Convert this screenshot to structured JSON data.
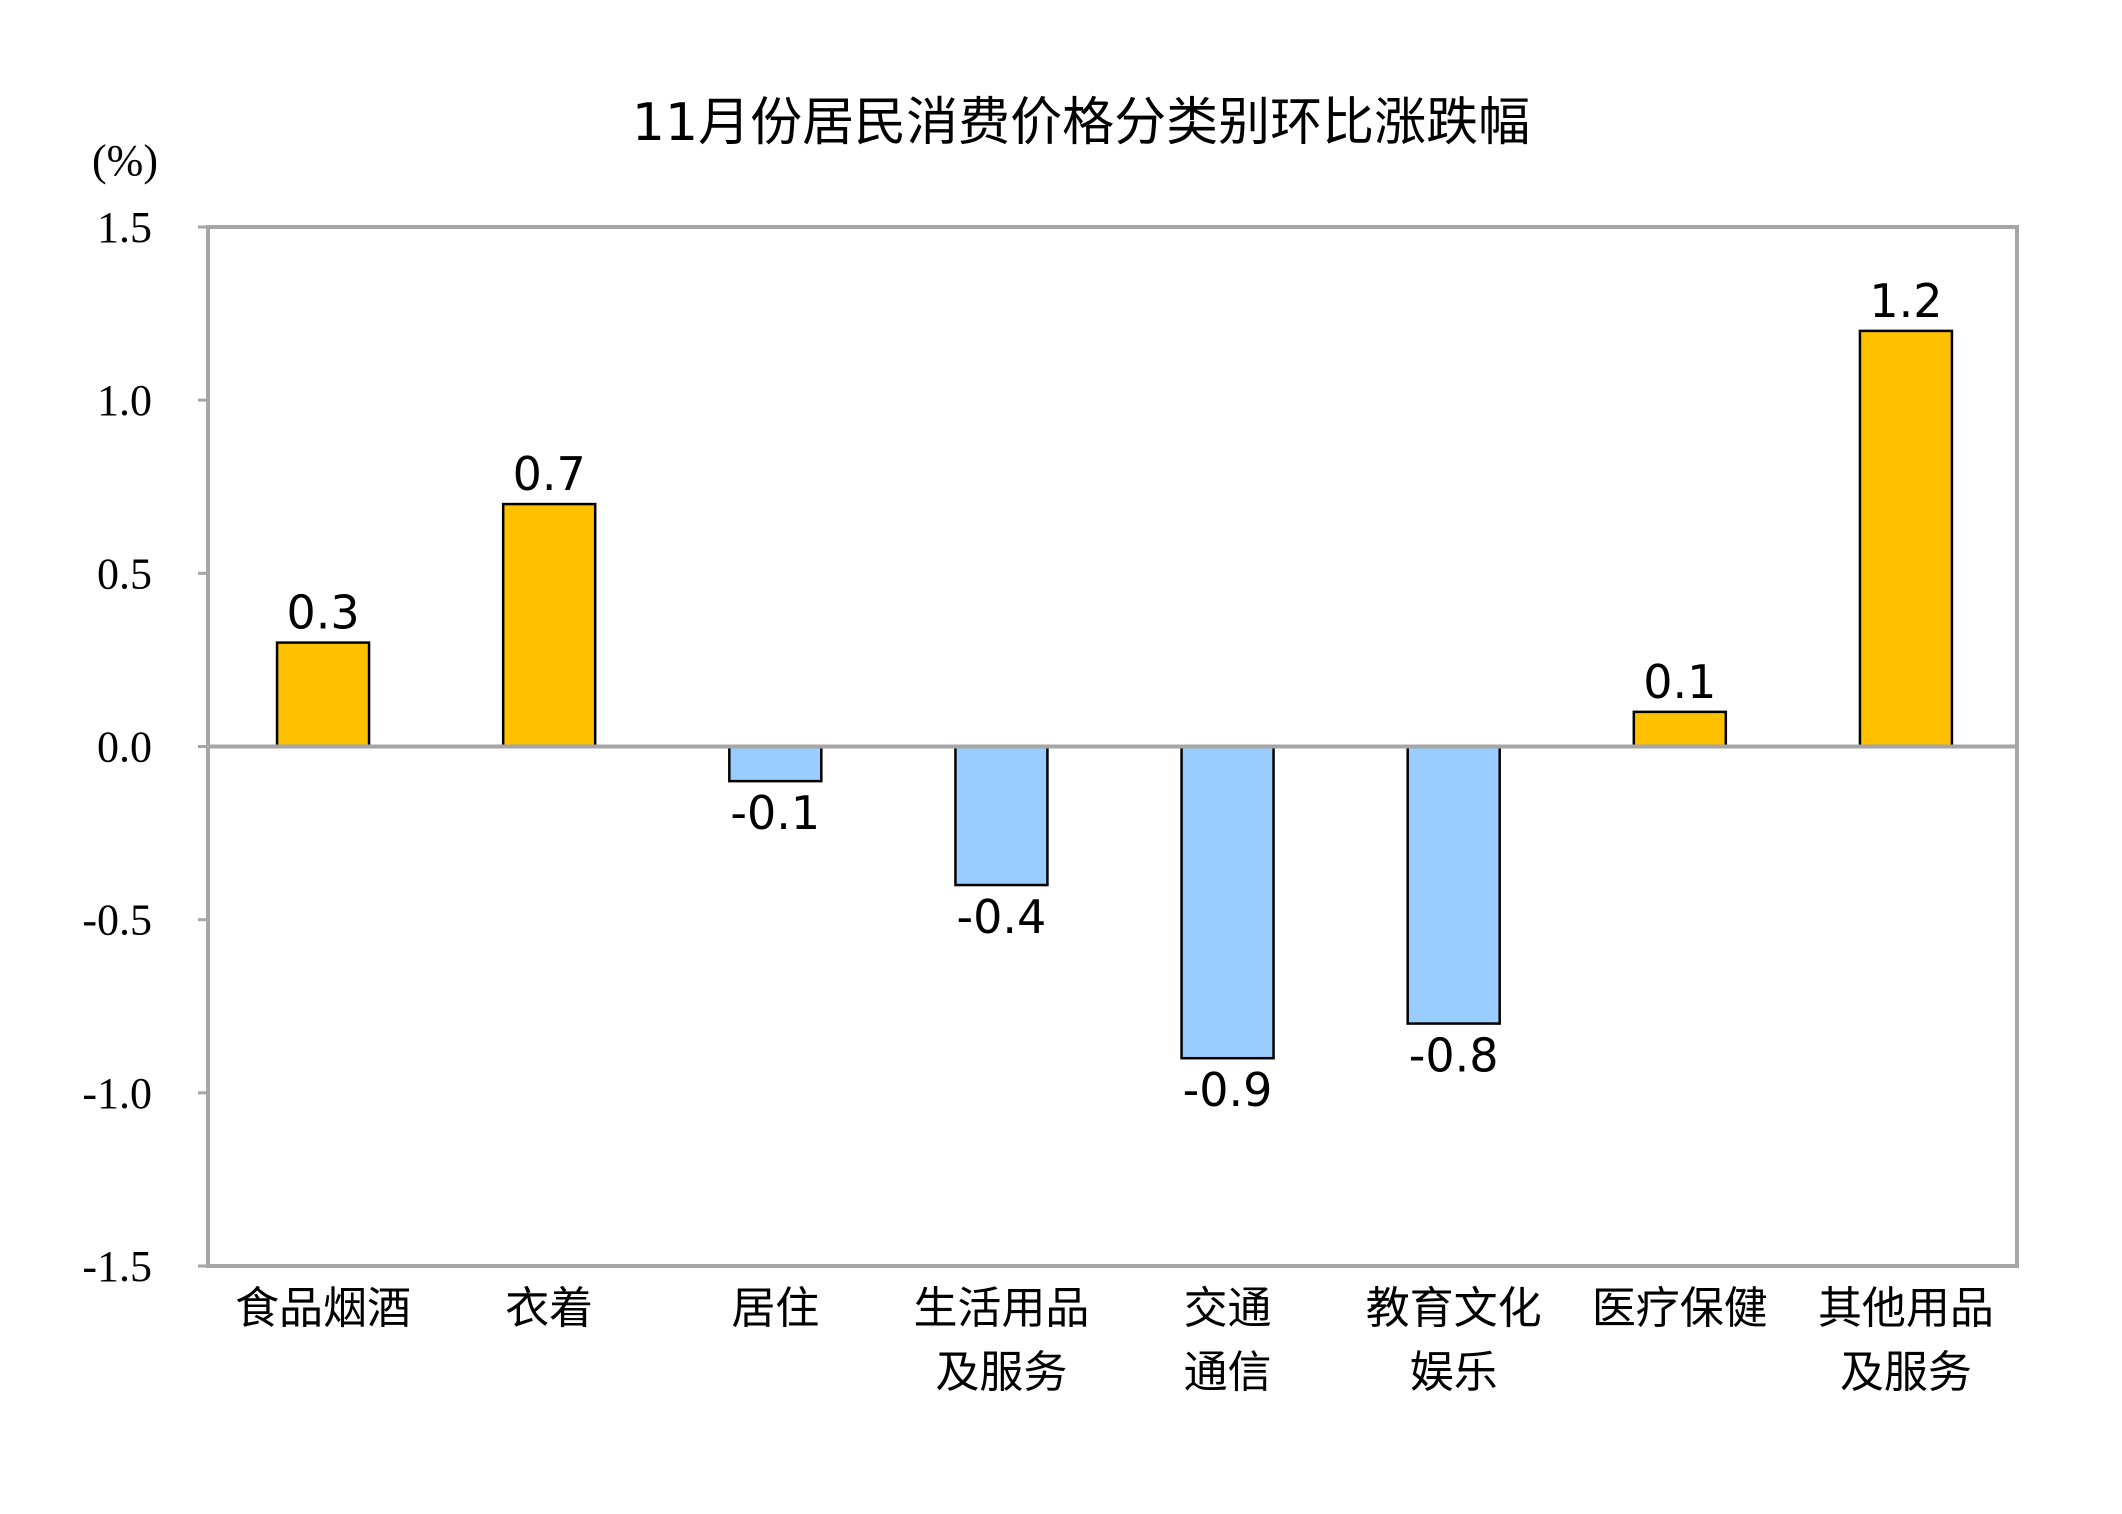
{
  "chart_data": {
    "type": "bar",
    "title": "11月份居民消费价格分类别环比涨跌幅",
    "ylabel": "(%)",
    "xlabel": "",
    "ylim": [
      -1.5,
      1.5
    ],
    "yticks": [
      "1.5",
      "1.0",
      "0.5",
      "0.0",
      "-0.5",
      "-1.0",
      "-1.5"
    ],
    "ytick_values": [
      1.5,
      1.0,
      0.5,
      0.0,
      -0.5,
      -1.0,
      -1.5
    ],
    "grid": false,
    "categories": [
      [
        "食品烟酒"
      ],
      [
        "衣着"
      ],
      [
        "居住"
      ],
      [
        "生活用品",
        "及服务"
      ],
      [
        "交通",
        "通信"
      ],
      [
        "教育文化",
        "娱乐"
      ],
      [
        "医疗保健"
      ],
      [
        "其他用品",
        "及服务"
      ]
    ],
    "values": [
      0.3,
      0.7,
      -0.1,
      -0.4,
      -0.9,
      -0.8,
      0.1,
      1.2
    ],
    "data_labels": [
      "0.3",
      "0.7",
      "-0.1",
      "-0.4",
      "-0.9",
      "-0.8",
      "0.1",
      "1.2"
    ],
    "colors": {
      "positive": "#FFC000",
      "negative": "#99CCFF",
      "frame": "#A6A6A6",
      "bar_edge": "#000000"
    }
  }
}
